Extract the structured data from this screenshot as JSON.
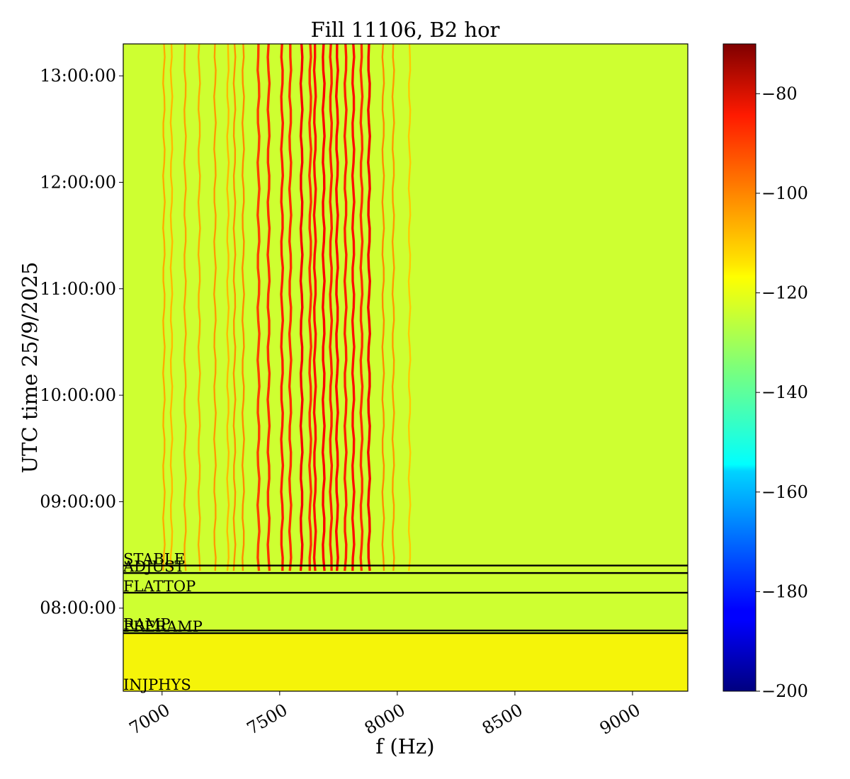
{
  "chart_data": {
    "type": "heatmap",
    "title": "Fill 11106, B2 hor",
    "xlabel": "f (Hz)",
    "ylabel": "UTC time 25/9/2025",
    "xlim": [
      6835,
      9235
    ],
    "x_ticks": [
      {
        "value": 7000,
        "label": "7000"
      },
      {
        "value": 7500,
        "label": "7500"
      },
      {
        "value": 8000,
        "label": "8000"
      },
      {
        "value": 8500,
        "label": "8500"
      },
      {
        "value": 9000,
        "label": "9000"
      }
    ],
    "ylim_hours": [
      7.22,
      13.3
    ],
    "y_ticks": [
      {
        "value": 8,
        "label": "08:00:00"
      },
      {
        "value": 9,
        "label": "09:00:00"
      },
      {
        "value": 10,
        "label": "10:00:00"
      },
      {
        "value": 11,
        "label": "11:00:00"
      },
      {
        "value": 12,
        "label": "12:00:00"
      },
      {
        "value": 13,
        "label": "13:00:00"
      }
    ],
    "colorbar": {
      "colormap": "jet",
      "range": [
        -200,
        -70
      ],
      "ticks": [
        {
          "value": -80,
          "label": "−80"
        },
        {
          "value": -100,
          "label": "−100"
        },
        {
          "value": -120,
          "label": "−120"
        },
        {
          "value": -140,
          "label": "−140"
        },
        {
          "value": -160,
          "label": "−160"
        },
        {
          "value": -180,
          "label": "−180"
        },
        {
          "value": -200,
          "label": "−200"
        }
      ]
    },
    "background_level": -125,
    "events": [
      {
        "label": "STABLE",
        "time_hours": 8.4
      },
      {
        "label": "ADJUST",
        "time_hours": 8.33
      },
      {
        "label": "FLATTOP",
        "time_hours": 8.145
      },
      {
        "label": "RAMP",
        "time_hours": 7.79
      },
      {
        "label": "PRERAMP",
        "time_hours": 7.765
      },
      {
        "label": "INJPHYS",
        "time_hours": 7.22
      }
    ],
    "lines": [
      {
        "freq": 7008,
        "level": -108
      },
      {
        "freq": 7040,
        "level": -110
      },
      {
        "freq": 7098,
        "level": -107
      },
      {
        "freq": 7158,
        "level": -108
      },
      {
        "freq": 7225,
        "level": -106
      },
      {
        "freq": 7280,
        "level": -110
      },
      {
        "freq": 7308,
        "level": -105
      },
      {
        "freq": 7345,
        "level": -104
      },
      {
        "freq": 7410,
        "level": -94
      },
      {
        "freq": 7453,
        "level": -92
      },
      {
        "freq": 7510,
        "level": -90
      },
      {
        "freq": 7545,
        "level": -92
      },
      {
        "freq": 7593,
        "level": -85
      },
      {
        "freq": 7630,
        "level": -92
      },
      {
        "freq": 7650,
        "level": -88
      },
      {
        "freq": 7687,
        "level": -86
      },
      {
        "freq": 7718,
        "level": -90
      },
      {
        "freq": 7744,
        "level": -86
      },
      {
        "freq": 7780,
        "level": -90
      },
      {
        "freq": 7813,
        "level": -88
      },
      {
        "freq": 7848,
        "level": -92
      },
      {
        "freq": 7880,
        "level": -85
      },
      {
        "freq": 7940,
        "level": -104
      },
      {
        "freq": 7983,
        "level": -106
      },
      {
        "freq": 8052,
        "level": -112
      }
    ]
  }
}
